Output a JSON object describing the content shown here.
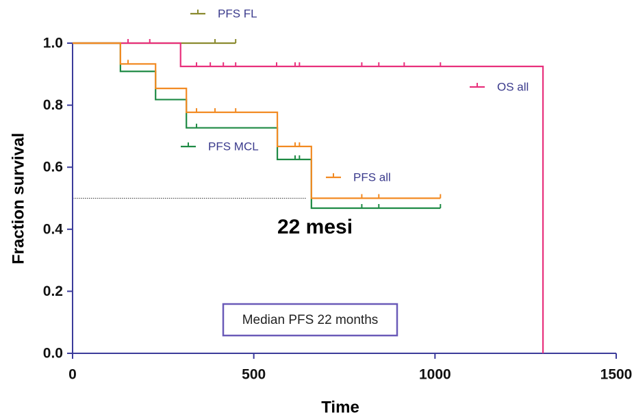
{
  "chart_data": {
    "type": "survival-step",
    "x_label": "Time",
    "y_label": "Fraction survival",
    "xlim": [
      0,
      1500
    ],
    "ylim": [
      0,
      1.0
    ],
    "xticks": [
      0,
      500,
      1000,
      1500
    ],
    "yticks": [
      {
        "value": 0,
        "label": "0.0"
      },
      {
        "value": 0.2,
        "label": "0.2"
      },
      {
        "value": 0.4,
        "label": "0.4"
      },
      {
        "value": 0.6,
        "label": "0.6"
      },
      {
        "value": 0.8,
        "label": "0.8"
      },
      {
        "value": 1.0,
        "label": "1.0"
      }
    ],
    "series": [
      {
        "name": "PFS FL",
        "color": "#8a8a2e",
        "x": [
          0,
          450
        ],
        "values": [
          1.0,
          1.0
        ],
        "censors": {
          "x": [
            393,
            450
          ],
          "values": [
            1.0,
            1.0
          ]
        }
      },
      {
        "name": "OS all",
        "color": "#e8307c",
        "x": [
          0,
          298,
          1298
        ],
        "values": [
          1.0,
          0.925,
          0
        ],
        "censors": {
          "x": [
            153,
            213,
            342,
            380,
            416,
            450,
            563,
            614,
            626,
            798,
            845,
            915,
            1015
          ],
          "values": [
            1.0,
            1.0,
            0.925,
            0.925,
            0.925,
            0.925,
            0.925,
            0.925,
            0.925,
            0.925,
            0.925,
            0.925,
            0.925
          ]
        }
      },
      {
        "name": "PFS MCL",
        "color": "#1e8a44",
        "x": [
          0,
          132,
          229,
          314,
          565,
          659,
          1015
        ],
        "values": [
          1.0,
          0.909,
          0.818,
          0.727,
          0.625,
          0.468,
          0.468
        ],
        "censors": {
          "x": [
            342,
            614,
            626,
            798,
            845,
            1015
          ],
          "values": [
            0.727,
            0.625,
            0.625,
            0.468,
            0.468,
            0.468
          ]
        }
      },
      {
        "name": "PFS all",
        "color": "#f28a22",
        "x": [
          0,
          132,
          229,
          314,
          565,
          659,
          1015
        ],
        "values": [
          1.0,
          0.933,
          0.854,
          0.777,
          0.667,
          0.5,
          0.5
        ],
        "censors": {
          "x": [
            153,
            342,
            393,
            450,
            614,
            626,
            798,
            845,
            1015
          ],
          "values": [
            0.933,
            0.777,
            0.777,
            0.777,
            0.667,
            0.667,
            0.5,
            0.5,
            0.5
          ]
        }
      }
    ],
    "reference_line": {
      "y": 0.5,
      "x": [
        0,
        645
      ]
    },
    "annotations": [
      "22 mesi",
      "Median PFS 22 months"
    ]
  }
}
